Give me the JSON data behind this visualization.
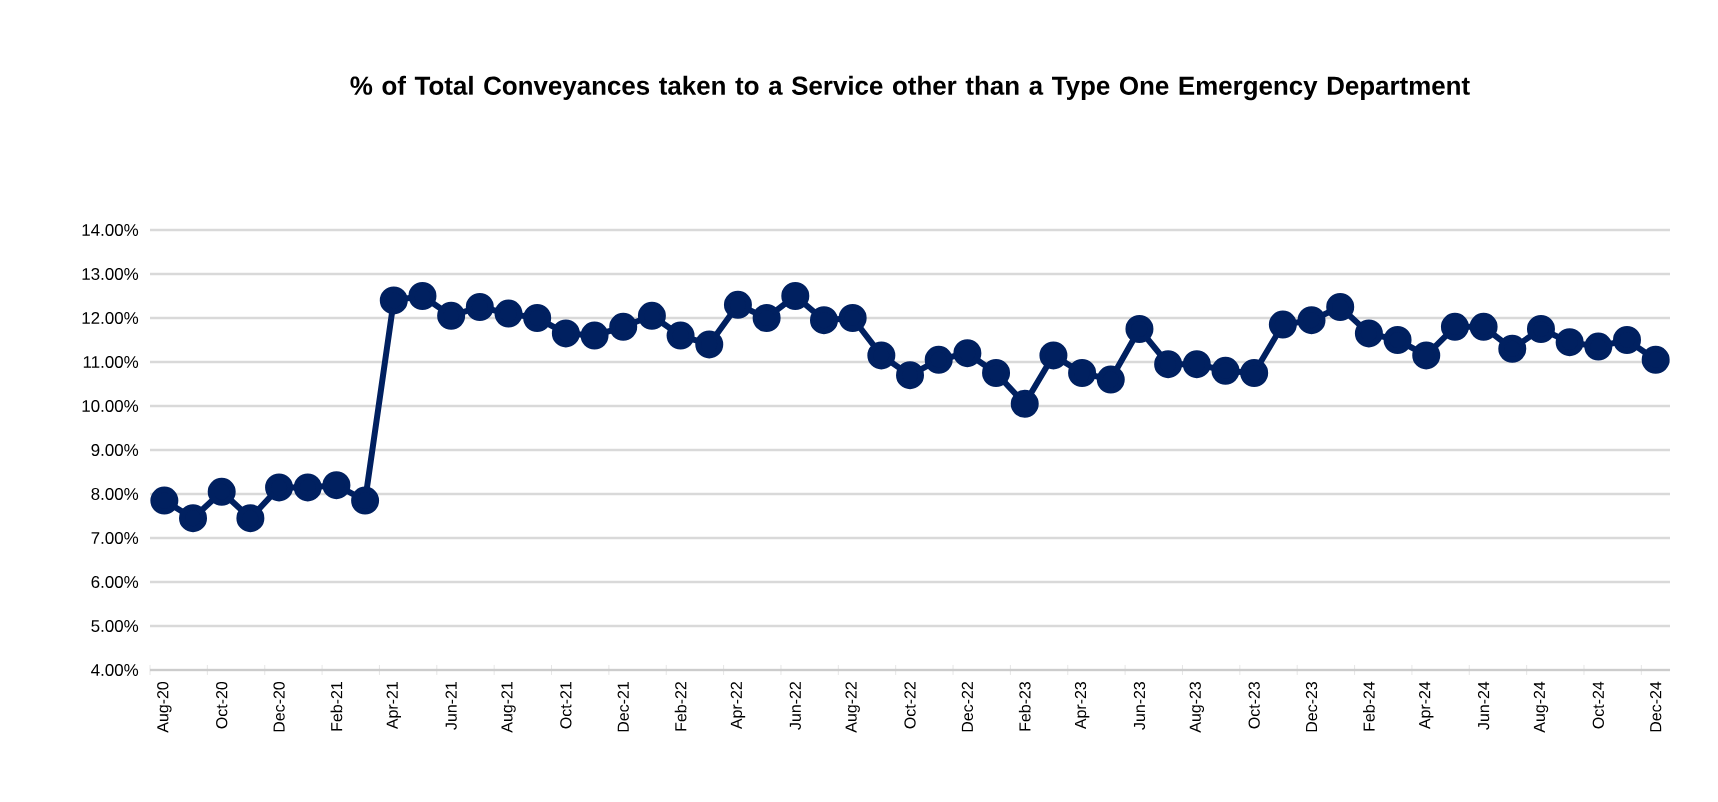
{
  "chart_data": {
    "type": "line",
    "title": "% of Total Conveyances taken to a Service other than a Type One Emergency Department",
    "categories": [
      "Aug-20",
      null,
      "Oct-20",
      null,
      "Dec-20",
      null,
      "Feb-21",
      null,
      "Apr-21",
      null,
      "Jun-21",
      null,
      "Aug-21",
      null,
      "Oct-21",
      null,
      "Dec-21",
      null,
      "Feb-22",
      null,
      "Apr-22",
      null,
      "Jun-22",
      null,
      "Aug-22",
      null,
      "Oct-22",
      null,
      "Dec-22",
      null,
      "Feb-23",
      null,
      "Apr-23",
      null,
      "Jun-23",
      null,
      "Aug-23",
      null,
      "Oct-23",
      null,
      "Dec-23",
      null,
      "Feb-24",
      null,
      "Apr-24",
      null,
      "Jun-24",
      null,
      "Aug-24",
      null,
      "Oct-24",
      null,
      "Dec-24"
    ],
    "values": [
      7.85,
      7.45,
      8.05,
      7.45,
      8.15,
      8.15,
      8.2,
      7.85,
      12.4,
      12.5,
      12.05,
      12.25,
      12.1,
      12.0,
      11.65,
      11.6,
      11.8,
      12.05,
      11.6,
      11.4,
      12.3,
      12.0,
      12.5,
      11.95,
      12.0,
      11.15,
      10.7,
      11.05,
      11.2,
      10.75,
      10.05,
      11.15,
      10.75,
      10.6,
      11.75,
      10.95,
      10.95,
      10.8,
      10.75,
      11.85,
      11.95,
      12.25,
      11.65,
      11.5,
      11.15,
      11.8,
      11.8,
      11.3,
      11.75,
      11.45,
      11.35,
      11.5,
      11.05
    ],
    "color": "#002060",
    "marker": "circle",
    "line_style": "solid",
    "grid": "y",
    "ylim": [
      4,
      14
    ],
    "yticks": [
      {
        "value": 4,
        "label": "4.00%"
      },
      {
        "value": 5,
        "label": "5.00%"
      },
      {
        "value": 6,
        "label": "6.00%"
      },
      {
        "value": 7,
        "label": "7.00%"
      },
      {
        "value": 8,
        "label": "8.00%"
      },
      {
        "value": 9,
        "label": "9.00%"
      },
      {
        "value": 10,
        "label": "10.00%"
      },
      {
        "value": 11,
        "label": "11.00%"
      },
      {
        "value": 12,
        "label": "12.00%"
      },
      {
        "value": 13,
        "label": "13.00%"
      },
      {
        "value": 14,
        "label": "14.00%"
      }
    ]
  }
}
